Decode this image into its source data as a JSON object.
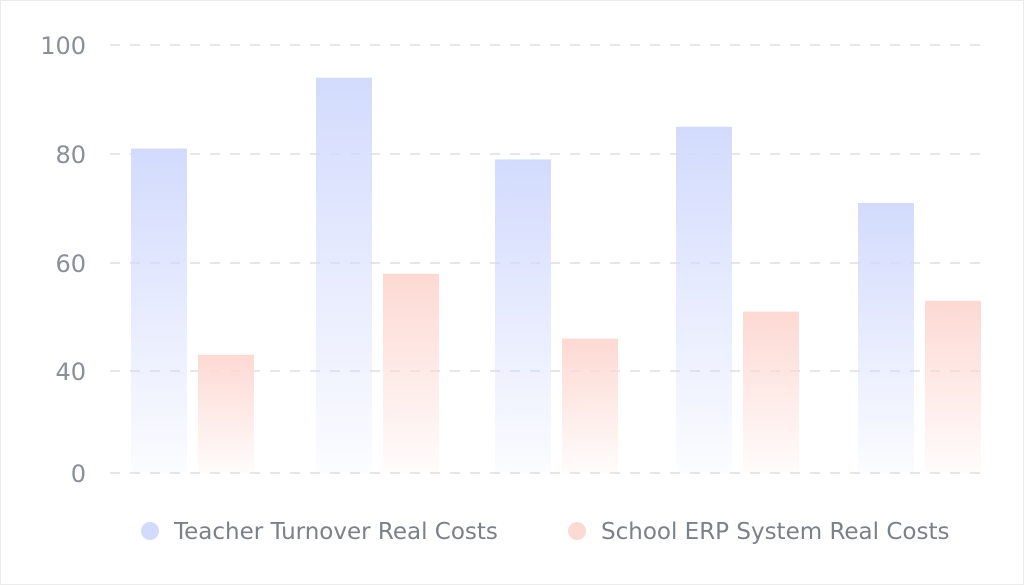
{
  "chart_data": {
    "type": "bar",
    "categories": [
      "",
      "",
      "",
      "",
      ""
    ],
    "yticks": [
      0,
      40,
      60,
      80,
      100
    ],
    "ylim": [
      0,
      100
    ],
    "grid": true,
    "legend_position": "bottom",
    "series": [
      {
        "name": "Teacher Turnover Real Costs",
        "color": "#d3dbfd",
        "values": [
          81,
          94,
          79,
          85,
          71
        ]
      },
      {
        "name": "School ERP System Real Costs",
        "color": "#fdd9d3",
        "values": [
          43,
          58,
          46,
          51,
          53
        ]
      }
    ]
  }
}
